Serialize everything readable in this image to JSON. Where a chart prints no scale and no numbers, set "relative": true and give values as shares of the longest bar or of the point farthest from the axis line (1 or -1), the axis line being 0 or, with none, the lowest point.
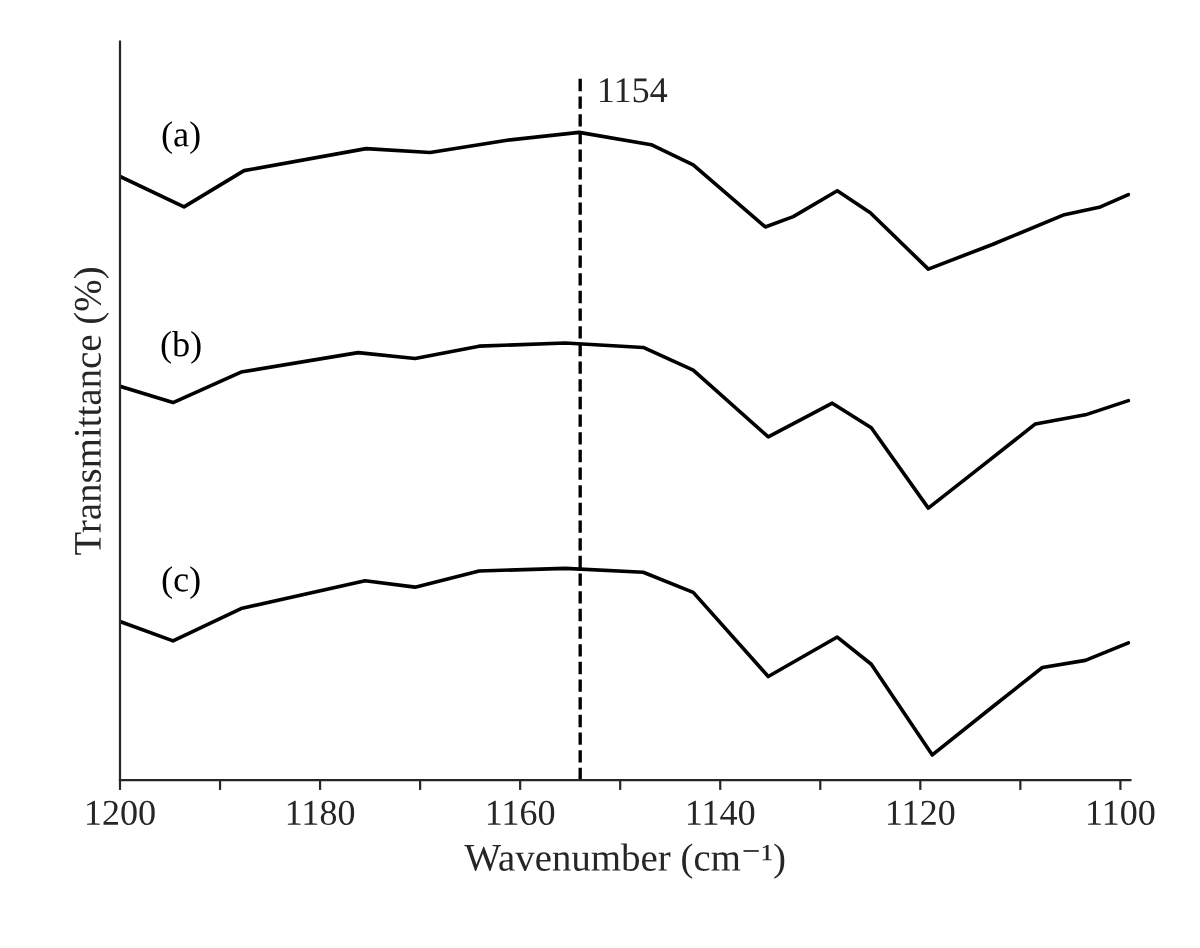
{
  "chart_data": {
    "type": "line",
    "relative": true,
    "xlabel": "Wavenumber (cm⁻¹)",
    "ylabel": "Transmittance (%)",
    "xlim": [
      1200,
      1099
    ],
    "xticks": [
      1200,
      {
        "value": 1190,
        "label": null
      },
      1180,
      {
        "value": 1170,
        "label": null
      },
      1160,
      {
        "value": 1150,
        "label": null
      },
      1140,
      {
        "value": 1130,
        "label": null
      },
      1120,
      {
        "value": 1110,
        "label": null
      },
      1100
    ],
    "legend": false,
    "grid": false,
    "line_style": "solid",
    "ref_lines": [
      {
        "axis": "x",
        "value": 1154,
        "label": "1154",
        "color": "#000000",
        "line_style": "dashed"
      }
    ],
    "series": [
      {
        "name": "(a)",
        "color": "#000000",
        "x": [
          1200,
          1193.6,
          1187.6,
          1175.4,
          1169,
          1161.3,
          1154.1,
          1146.9,
          1142.7,
          1135.5,
          1132.7,
          1128.3,
          1125,
          1119.2,
          1112.8,
          1105.6,
          1102,
          1099.2
        ],
        "values": [
          0.932,
          0.885,
          0.941,
          0.975,
          0.969,
          0.988,
          1.0,
          0.981,
          0.95,
          0.854,
          0.87,
          0.91,
          0.876,
          0.789,
          0.827,
          0.873,
          0.885,
          0.904
        ]
      },
      {
        "name": "(b)",
        "color": "#000000",
        "x": [
          1200,
          1194.7,
          1187.9,
          1176.2,
          1170.5,
          1164.1,
          1155.5,
          1147.7,
          1142.7,
          1135.2,
          1128.8,
          1124.9,
          1119.2,
          1113.5,
          1108.5,
          1103.5,
          1099.2
        ],
        "values": [
          0.608,
          0.583,
          0.63,
          0.66,
          0.651,
          0.67,
          0.675,
          0.668,
          0.633,
          0.53,
          0.582,
          0.544,
          0.42,
          0.489,
          0.55,
          0.564,
          0.586
        ]
      },
      {
        "name": "(c)",
        "color": "#000000",
        "x": [
          1200,
          1194.7,
          1187.9,
          1175.5,
          1170.5,
          1164.1,
          1155.5,
          1147.7,
          1142.7,
          1135.2,
          1128.3,
          1124.9,
          1118.8,
          1112.8,
          1107.8,
          1103.5,
          1099.2
        ],
        "values": [
          0.245,
          0.215,
          0.265,
          0.308,
          0.298,
          0.323,
          0.327,
          0.321,
          0.29,
          0.16,
          0.221,
          0.179,
          0.039,
          0.113,
          0.174,
          0.185,
          0.212
        ]
      }
    ]
  }
}
